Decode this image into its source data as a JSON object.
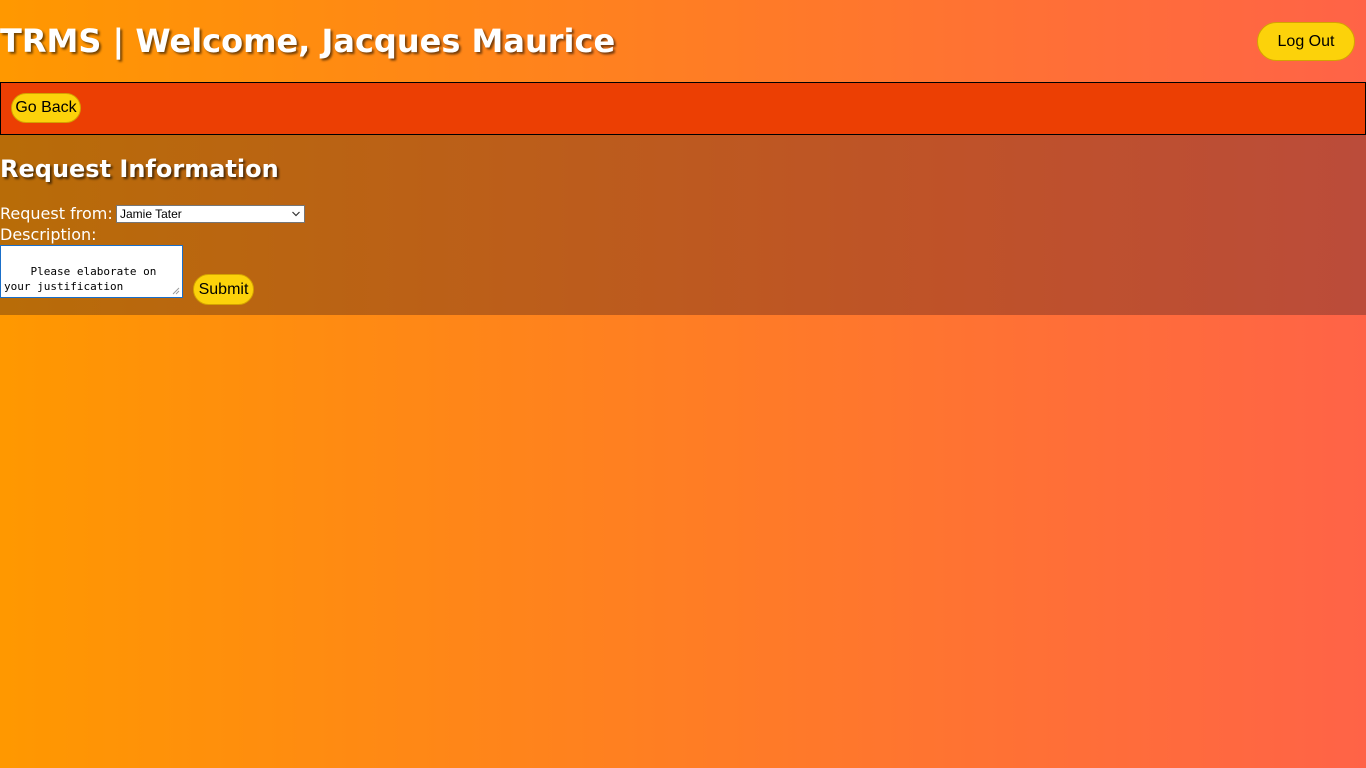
{
  "header": {
    "title": "TRMS | Welcome, Jacques Maurice",
    "logout_label": "Log Out"
  },
  "nav": {
    "go_back_label": "Go Back"
  },
  "request_form": {
    "heading": "Request Information",
    "request_from_label": "Request from:",
    "request_from_selected": "Jamie Tater",
    "description_label": "Description:",
    "description_value": "Please elaborate on your justification",
    "submit_label": "Submit"
  },
  "icons": {
    "select_arrow": "chevron-down-icon",
    "textarea_grip": "resize-grip-icon"
  },
  "colors": {
    "background_start": "#ff9800",
    "background_end": "#ff6347",
    "nav_bar": "#ec3f03",
    "button": "#fcd20a",
    "panel": "#b86c08"
  }
}
